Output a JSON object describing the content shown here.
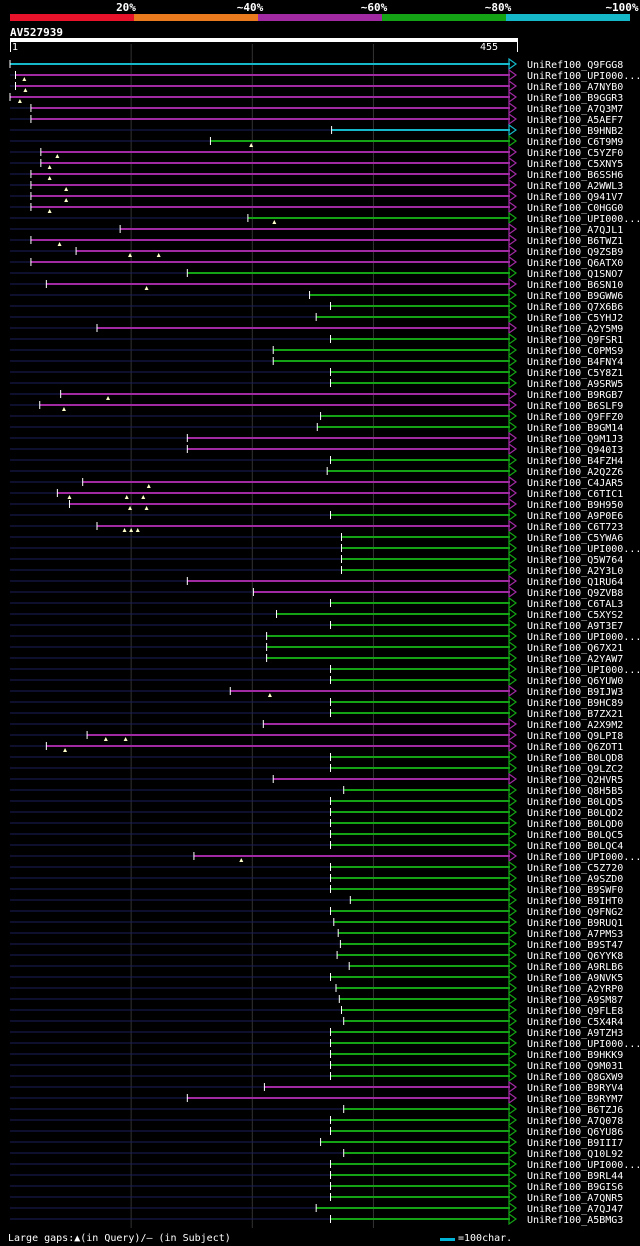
{
  "header": {
    "identity_legend": [
      {
        "label": "20%",
        "color": "#e8132b"
      },
      {
        "label": "~40%",
        "color": "#e97a1d"
      },
      {
        "label": "~60%",
        "color": "#a12aa3"
      },
      {
        "label": "~80%",
        "color": "#14a314"
      },
      {
        "label": "~100%",
        "color": "#14b8c8"
      }
    ],
    "query_name": "AV527939",
    "query_start": "1",
    "query_end": "455"
  },
  "colors": {
    "magenta": "#a12aa3",
    "green": "#14a314",
    "cyan": "#14b8c8",
    "faint": "#1c1c5a"
  },
  "chart_data": {
    "type": "alignment",
    "query_length": 455,
    "hits": [
      {
        "name": "UniRef100_Q9FGG8",
        "start": 1,
        "color": "cyan",
        "q": []
      },
      {
        "name": "UniRef100_UPI000...",
        "start": 6,
        "color": "magenta",
        "q": [
          14
        ]
      },
      {
        "name": "UniRef100_A7NYB0",
        "start": 6,
        "color": "magenta",
        "q": [
          15
        ]
      },
      {
        "name": "UniRef100_B9GGR3",
        "start": 1,
        "color": "magenta",
        "q": [
          10
        ]
      },
      {
        "name": "UniRef100_A7Q3M7",
        "start": 20,
        "color": "magenta",
        "q": []
      },
      {
        "name": "UniRef100_A5AEF7",
        "start": 20,
        "color": "magenta",
        "q": []
      },
      {
        "name": "UniRef100_B9HNB2",
        "start": 293,
        "color": "cyan",
        "q": []
      },
      {
        "name": "UniRef100_C6T9M9",
        "start": 183,
        "color": "green",
        "q": [
          220
        ]
      },
      {
        "name": "UniRef100_C5YZF0",
        "start": 29,
        "color": "magenta",
        "q": [
          44
        ]
      },
      {
        "name": "UniRef100_C5XNY5",
        "start": 29,
        "color": "magenta",
        "q": [
          37
        ]
      },
      {
        "name": "UniRef100_B6SSH6",
        "start": 20,
        "color": "magenta",
        "q": [
          37
        ]
      },
      {
        "name": "UniRef100_A2WWL3",
        "start": 20,
        "color": "magenta",
        "q": [
          52
        ]
      },
      {
        "name": "UniRef100_Q941V7",
        "start": 20,
        "color": "magenta",
        "q": [
          52
        ]
      },
      {
        "name": "UniRef100_C0HGG0",
        "start": 20,
        "color": "magenta",
        "q": [
          37
        ]
      },
      {
        "name": "UniRef100_UPI000...",
        "start": 217,
        "color": "green",
        "q": [
          241
        ]
      },
      {
        "name": "UniRef100_A7QJL1",
        "start": 101,
        "color": "magenta",
        "q": []
      },
      {
        "name": "UniRef100_B6TWZ1",
        "start": 20,
        "color": "magenta",
        "q": [
          46
        ]
      },
      {
        "name": "UniRef100_Q9ZSB9",
        "start": 61,
        "color": "magenta",
        "q": [
          110,
          136
        ]
      },
      {
        "name": "UniRef100_Q6ATX0",
        "start": 20,
        "color": "magenta",
        "q": []
      },
      {
        "name": "UniRef100_Q1SNO7",
        "start": 162,
        "color": "green",
        "q": []
      },
      {
        "name": "UniRef100_B6SN10",
        "start": 34,
        "color": "magenta",
        "q": [
          125
        ]
      },
      {
        "name": "UniRef100_B9GWW6",
        "start": 273,
        "color": "green",
        "q": []
      },
      {
        "name": "UniRef100_Q7X6B6",
        "start": 292,
        "color": "green",
        "q": []
      },
      {
        "name": "UniRef100_C5YHJ2",
        "start": 279,
        "color": "green",
        "q": []
      },
      {
        "name": "UniRef100_A2Y5M9",
        "start": 80,
        "color": "magenta",
        "q": []
      },
      {
        "name": "UniRef100_Q9FSR1",
        "start": 292,
        "color": "green",
        "q": []
      },
      {
        "name": "UniRef100_C0PMS9",
        "start": 240,
        "color": "green",
        "q": []
      },
      {
        "name": "UniRef100_B4FNY4",
        "start": 240,
        "color": "green",
        "q": []
      },
      {
        "name": "UniRef100_C5Y8Z1",
        "start": 292,
        "color": "green",
        "q": []
      },
      {
        "name": "UniRef100_A9SRW5",
        "start": 292,
        "color": "green",
        "q": []
      },
      {
        "name": "UniRef100_B9RGB7",
        "start": 47,
        "color": "magenta",
        "q": [
          90
        ]
      },
      {
        "name": "UniRef100_B6SLF9",
        "start": 28,
        "color": "magenta",
        "q": [
          50
        ]
      },
      {
        "name": "UniRef100_Q9FFZ0",
        "start": 283,
        "color": "green",
        "q": []
      },
      {
        "name": "UniRef100_B9GM14",
        "start": 280,
        "color": "green",
        "q": []
      },
      {
        "name": "UniRef100_Q9M1J3",
        "start": 162,
        "color": "magenta",
        "q": []
      },
      {
        "name": "UniRef100_Q940I3",
        "start": 162,
        "color": "magenta",
        "q": []
      },
      {
        "name": "UniRef100_B4FZH4",
        "start": 292,
        "color": "green",
        "q": []
      },
      {
        "name": "UniRef100_A2Q2Z6",
        "start": 289,
        "color": "green",
        "q": []
      },
      {
        "name": "UniRef100_C4JAR5",
        "start": 67,
        "color": "magenta",
        "q": [
          127
        ]
      },
      {
        "name": "UniRef100_C6TIC1",
        "start": 44,
        "color": "magenta",
        "q": [
          55,
          107,
          122
        ]
      },
      {
        "name": "UniRef100_B9H950",
        "start": 55,
        "color": "magenta",
        "q": [
          110,
          125
        ]
      },
      {
        "name": "UniRef100_A9P0E6",
        "start": 292,
        "color": "green",
        "q": []
      },
      {
        "name": "UniRef100_C6T723",
        "start": 80,
        "color": "magenta",
        "q": [
          105,
          111,
          117
        ]
      },
      {
        "name": "UniRef100_C5YWA6",
        "start": 302,
        "color": "green",
        "q": []
      },
      {
        "name": "UniRef100_UPI000...",
        "start": 302,
        "color": "green",
        "q": []
      },
      {
        "name": "UniRef100_Q5W764",
        "start": 302,
        "color": "green",
        "q": []
      },
      {
        "name": "UniRef100_A2Y3L0",
        "start": 302,
        "color": "green",
        "q": []
      },
      {
        "name": "UniRef100_Q1RU64",
        "start": 162,
        "color": "magenta",
        "q": []
      },
      {
        "name": "UniRef100_Q9ZVB8",
        "start": 222,
        "color": "magenta",
        "q": []
      },
      {
        "name": "UniRef100_C6TAL3",
        "start": 292,
        "color": "green",
        "q": []
      },
      {
        "name": "UniRef100_C5XYS2",
        "start": 243,
        "color": "green",
        "q": []
      },
      {
        "name": "UniRef100_A9T3E7",
        "start": 292,
        "color": "green",
        "q": []
      },
      {
        "name": "UniRef100_UPI000...",
        "start": 234,
        "color": "green",
        "q": []
      },
      {
        "name": "UniRef100_Q67X21",
        "start": 234,
        "color": "green",
        "q": []
      },
      {
        "name": "UniRef100_A2YAW7",
        "start": 234,
        "color": "green",
        "q": []
      },
      {
        "name": "UniRef100_UPI000...",
        "start": 292,
        "color": "green",
        "q": []
      },
      {
        "name": "UniRef100_Q6YUW0",
        "start": 292,
        "color": "green",
        "q": []
      },
      {
        "name": "UniRef100_B9IJW3",
        "start": 201,
        "color": "magenta",
        "q": [
          237
        ]
      },
      {
        "name": "UniRef100_B9HC89",
        "start": 292,
        "color": "green",
        "q": []
      },
      {
        "name": "UniRef100_B7ZX21",
        "start": 292,
        "color": "green",
        "q": []
      },
      {
        "name": "UniRef100_A2X9M2",
        "start": 231,
        "color": "magenta",
        "q": []
      },
      {
        "name": "UniRef100_Q9LPI8",
        "start": 71,
        "color": "magenta",
        "q": [
          88,
          106
        ]
      },
      {
        "name": "UniRef100_Q6ZOT1",
        "start": 34,
        "color": "magenta",
        "q": [
          51
        ]
      },
      {
        "name": "UniRef100_B0LQD8",
        "start": 292,
        "color": "green",
        "q": []
      },
      {
        "name": "UniRef100_Q9LZC2",
        "start": 292,
        "color": "green",
        "q": []
      },
      {
        "name": "UniRef100_Q2HVR5",
        "start": 240,
        "color": "magenta",
        "q": []
      },
      {
        "name": "UniRef100_Q8H5B5",
        "start": 304,
        "color": "green",
        "q": []
      },
      {
        "name": "UniRef100_B0LQD5",
        "start": 292,
        "color": "green",
        "q": []
      },
      {
        "name": "UniRef100_B0LQD2",
        "start": 292,
        "color": "green",
        "q": []
      },
      {
        "name": "UniRef100_B0LQD0",
        "start": 292,
        "color": "green",
        "q": []
      },
      {
        "name": "UniRef100_B0LQC5",
        "start": 292,
        "color": "green",
        "q": []
      },
      {
        "name": "UniRef100_B0LQC4",
        "start": 292,
        "color": "green",
        "q": []
      },
      {
        "name": "UniRef100_UPI000...",
        "start": 168,
        "color": "magenta",
        "q": [
          211
        ]
      },
      {
        "name": "UniRef100_C5Z720",
        "start": 292,
        "color": "green",
        "q": []
      },
      {
        "name": "UniRef100_A9SZD0",
        "start": 292,
        "color": "green",
        "q": []
      },
      {
        "name": "UniRef100_B9SWF0",
        "start": 292,
        "color": "green",
        "q": []
      },
      {
        "name": "UniRef100_B9IHT0",
        "start": 310,
        "color": "green",
        "q": []
      },
      {
        "name": "UniRef100_Q9FNG2",
        "start": 292,
        "color": "green",
        "q": []
      },
      {
        "name": "UniRef100_B9RUQ1",
        "start": 295,
        "color": "green",
        "q": []
      },
      {
        "name": "UniRef100_A7PMS3",
        "start": 299,
        "color": "green",
        "q": []
      },
      {
        "name": "UniRef100_B9ST47",
        "start": 301,
        "color": "green",
        "q": []
      },
      {
        "name": "UniRef100_Q6YYK8",
        "start": 298,
        "color": "green",
        "q": []
      },
      {
        "name": "UniRef100_A9RLB6",
        "start": 309,
        "color": "green",
        "q": []
      },
      {
        "name": "UniRef100_A9NVK5",
        "start": 292,
        "color": "green",
        "q": []
      },
      {
        "name": "UniRef100_A2YRP0",
        "start": 297,
        "color": "green",
        "q": []
      },
      {
        "name": "UniRef100_A9SM87",
        "start": 300,
        "color": "green",
        "q": []
      },
      {
        "name": "UniRef100_Q9FLE8",
        "start": 302,
        "color": "green",
        "q": []
      },
      {
        "name": "UniRef100_C5X4R4",
        "start": 304,
        "color": "green",
        "q": []
      },
      {
        "name": "UniRef100_A9TZH3",
        "start": 292,
        "color": "green",
        "q": []
      },
      {
        "name": "UniRef100_UPI000...",
        "start": 292,
        "color": "green",
        "q": []
      },
      {
        "name": "UniRef100_B9HKK9",
        "start": 292,
        "color": "green",
        "q": []
      },
      {
        "name": "UniRef100_Q9M031",
        "start": 292,
        "color": "green",
        "q": []
      },
      {
        "name": "UniRef100_Q8GXW9",
        "start": 292,
        "color": "green",
        "q": []
      },
      {
        "name": "UniRef100_B9RYV4",
        "start": 232,
        "color": "magenta",
        "q": []
      },
      {
        "name": "UniRef100_B9RYM7",
        "start": 162,
        "color": "magenta",
        "q": []
      },
      {
        "name": "UniRef100_B6TZJ6",
        "start": 304,
        "color": "green",
        "q": []
      },
      {
        "name": "UniRef100_A7Q078",
        "start": 292,
        "color": "green",
        "q": []
      },
      {
        "name": "UniRef100_Q6YU86",
        "start": 292,
        "color": "green",
        "q": []
      },
      {
        "name": "UniRef100_B9III7",
        "start": 283,
        "color": "green",
        "q": []
      },
      {
        "name": "UniRef100_Q10L92",
        "start": 304,
        "color": "green",
        "q": []
      },
      {
        "name": "UniRef100_UPI000...",
        "start": 292,
        "color": "green",
        "q": []
      },
      {
        "name": "UniRef100_B9RL44",
        "start": 292,
        "color": "green",
        "q": []
      },
      {
        "name": "UniRef100_B9GIS6",
        "start": 292,
        "color": "green",
        "q": []
      },
      {
        "name": "UniRef100_A7QNR5",
        "start": 292,
        "color": "green",
        "q": []
      },
      {
        "name": "UniRef100_A7QJ47",
        "start": 279,
        "color": "green",
        "q": []
      },
      {
        "name": "UniRef100_A5BMG3",
        "start": 292,
        "color": "green",
        "q": []
      }
    ]
  },
  "footer": {
    "gap_text": "Large gaps:▲(in Query)/– (in Subject)",
    "scale_text": "=100char."
  }
}
